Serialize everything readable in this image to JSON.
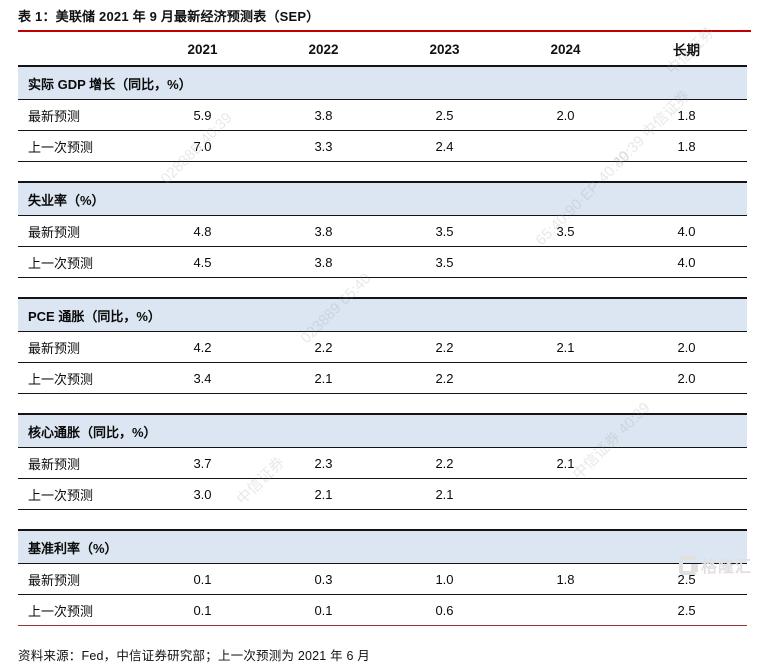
{
  "title": "表 1：美联储 2021 年 9 月最新经济预测表（SEP）",
  "columns": [
    "2021",
    "2022",
    "2023",
    "2024",
    "长期"
  ],
  "sections": [
    {
      "title": "实际 GDP 增长（同比，%）",
      "rows": [
        {
          "label": "最新预测",
          "values": [
            "5.9",
            "3.8",
            "2.5",
            "2.0",
            "1.8"
          ]
        },
        {
          "label": "上一次预测",
          "values": [
            "7.0",
            "3.3",
            "2.4",
            "",
            "1.8"
          ]
        }
      ]
    },
    {
      "title": "失业率（%）",
      "rows": [
        {
          "label": "最新预测",
          "values": [
            "4.8",
            "3.8",
            "3.5",
            "3.5",
            "4.0"
          ]
        },
        {
          "label": "上一次预测",
          "values": [
            "4.5",
            "3.8",
            "3.5",
            "",
            "4.0"
          ]
        }
      ]
    },
    {
      "title": "PCE 通胀（同比，%）",
      "rows": [
        {
          "label": "最新预测",
          "values": [
            "4.2",
            "2.2",
            "2.2",
            "2.1",
            "2.0"
          ]
        },
        {
          "label": "上一次预测",
          "values": [
            "3.4",
            "2.1",
            "2.2",
            "",
            "2.0"
          ]
        }
      ]
    },
    {
      "title": "核心通胀（同比，%）",
      "rows": [
        {
          "label": "最新预测",
          "values": [
            "3.7",
            "2.3",
            "2.2",
            "2.1",
            ""
          ]
        },
        {
          "label": "上一次预测",
          "values": [
            "3.0",
            "2.1",
            "2.1",
            "",
            ""
          ]
        }
      ]
    },
    {
      "title": "基准利率（%）",
      "rows": [
        {
          "label": "最新预测",
          "values": [
            "0.1",
            "0.3",
            "1.0",
            "1.8",
            "2.5"
          ]
        },
        {
          "label": "上一次预测",
          "values": [
            "0.1",
            "0.1",
            "0.6",
            "",
            "2.5"
          ]
        }
      ]
    }
  ],
  "footer": "资料来源：Fed，中信证券研究部；上一次预测为 2021 年 6 月",
  "watermarks": {
    "wm1": "40:39 中信证券",
    "wm2": "65:40:90·EP·40:39",
    "wm3": "02888B 40:39",
    "wm4": "023889 65:40",
    "wm5": "中信证券",
    "wm6": "中信证券 40:39",
    "wm7": "中信证券"
  },
  "brand": {
    "text": "格隆汇"
  },
  "colors": {
    "title_rule_red": "#c00000",
    "bottom_rule_red": "#943634",
    "section_header_bg": "#dbe6f2",
    "border_black": "#141414"
  }
}
